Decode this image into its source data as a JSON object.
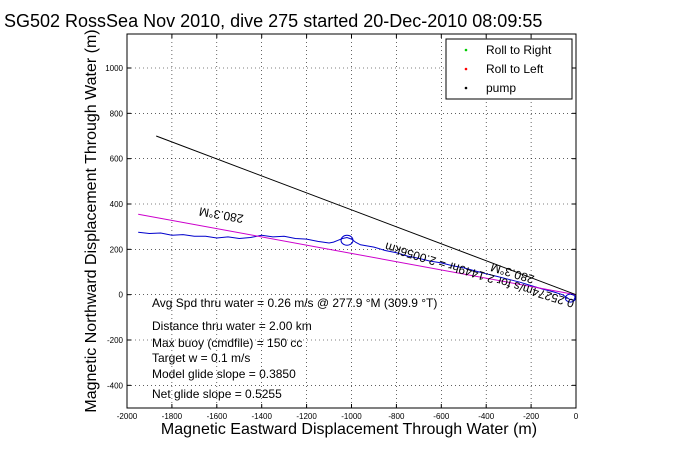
{
  "chart_data": {
    "type": "line",
    "title": "SG502 RossSea Nov 2010, dive 275 started 20-Dec-2010 08:09:55",
    "xlabel": "Magnetic Eastward Displacement Through Water (m)",
    "ylabel": "Magnetic Northward Displacement Through Water (m)",
    "xlim": [
      -2000,
      0
    ],
    "ylim": [
      -500,
      1150
    ],
    "xticks": [
      -2000,
      -1800,
      -1600,
      -1400,
      -1200,
      -1000,
      -800,
      -600,
      -400,
      -200,
      0
    ],
    "yticks": [
      -400,
      -200,
      0,
      200,
      400,
      600,
      800,
      1000
    ],
    "grid": true,
    "legend_position": "top-right",
    "legend": [
      {
        "label": "Roll to Right",
        "color": "#00cc00",
        "marker": "dot"
      },
      {
        "label": "Roll to Left",
        "color": "#ff0000",
        "marker": "dot"
      },
      {
        "label": "pump",
        "color": "#000000",
        "marker": "dot"
      }
    ],
    "series": [
      {
        "color": "#0000cc",
        "x": [
          -1950,
          -1900,
          -1850,
          -1800,
          -1750,
          -1700,
          -1650,
          -1600,
          -1550,
          -1500,
          -1450,
          -1400,
          -1350,
          -1300,
          -1250,
          -1200,
          -1150,
          -1100,
          -1080,
          -1060,
          -1040,
          -1020,
          -1000,
          -980,
          -960,
          -900,
          -850,
          -800,
          -750,
          -700,
          -650,
          -600,
          -550,
          -500,
          -450,
          -400,
          -350,
          -300,
          -250,
          -200,
          -150,
          -100,
          -60,
          -30,
          -10,
          0
        ],
        "y": [
          275,
          270,
          272,
          262,
          265,
          258,
          258,
          250,
          255,
          248,
          252,
          262,
          255,
          258,
          248,
          245,
          235,
          228,
          232,
          240,
          248,
          252,
          245,
          230,
          220,
          210,
          195,
          185,
          170,
          160,
          148,
          140,
          128,
          118,
          105,
          92,
          80,
          68,
          55,
          40,
          25,
          12,
          0,
          -20,
          -25,
          0
        ]
      },
      {
        "color": "#cc00cc",
        "x": [
          -1950,
          0
        ],
        "y": [
          355,
          0
        ]
      },
      {
        "color": "#000000",
        "x": [
          -1870,
          0
        ],
        "y": [
          700,
          0
        ]
      }
    ],
    "annotations": {
      "heading_left": "280.3°M",
      "heading_right": "280.3°M",
      "speed_label": "0.25274m/s for 2.1449hr = 2.0056km"
    },
    "stats": [
      "Avg Spd thru water =  0.26 m/s @ 277.9    °M (309.9 °T)",
      "Distance thru water =  2.00 km",
      "Max buoy (cmdfile) = 150 cc",
      "Target w = 0.1 m/s",
      "Model glide slope = 0.3850",
      "Net glide slope = 0.5255"
    ]
  }
}
